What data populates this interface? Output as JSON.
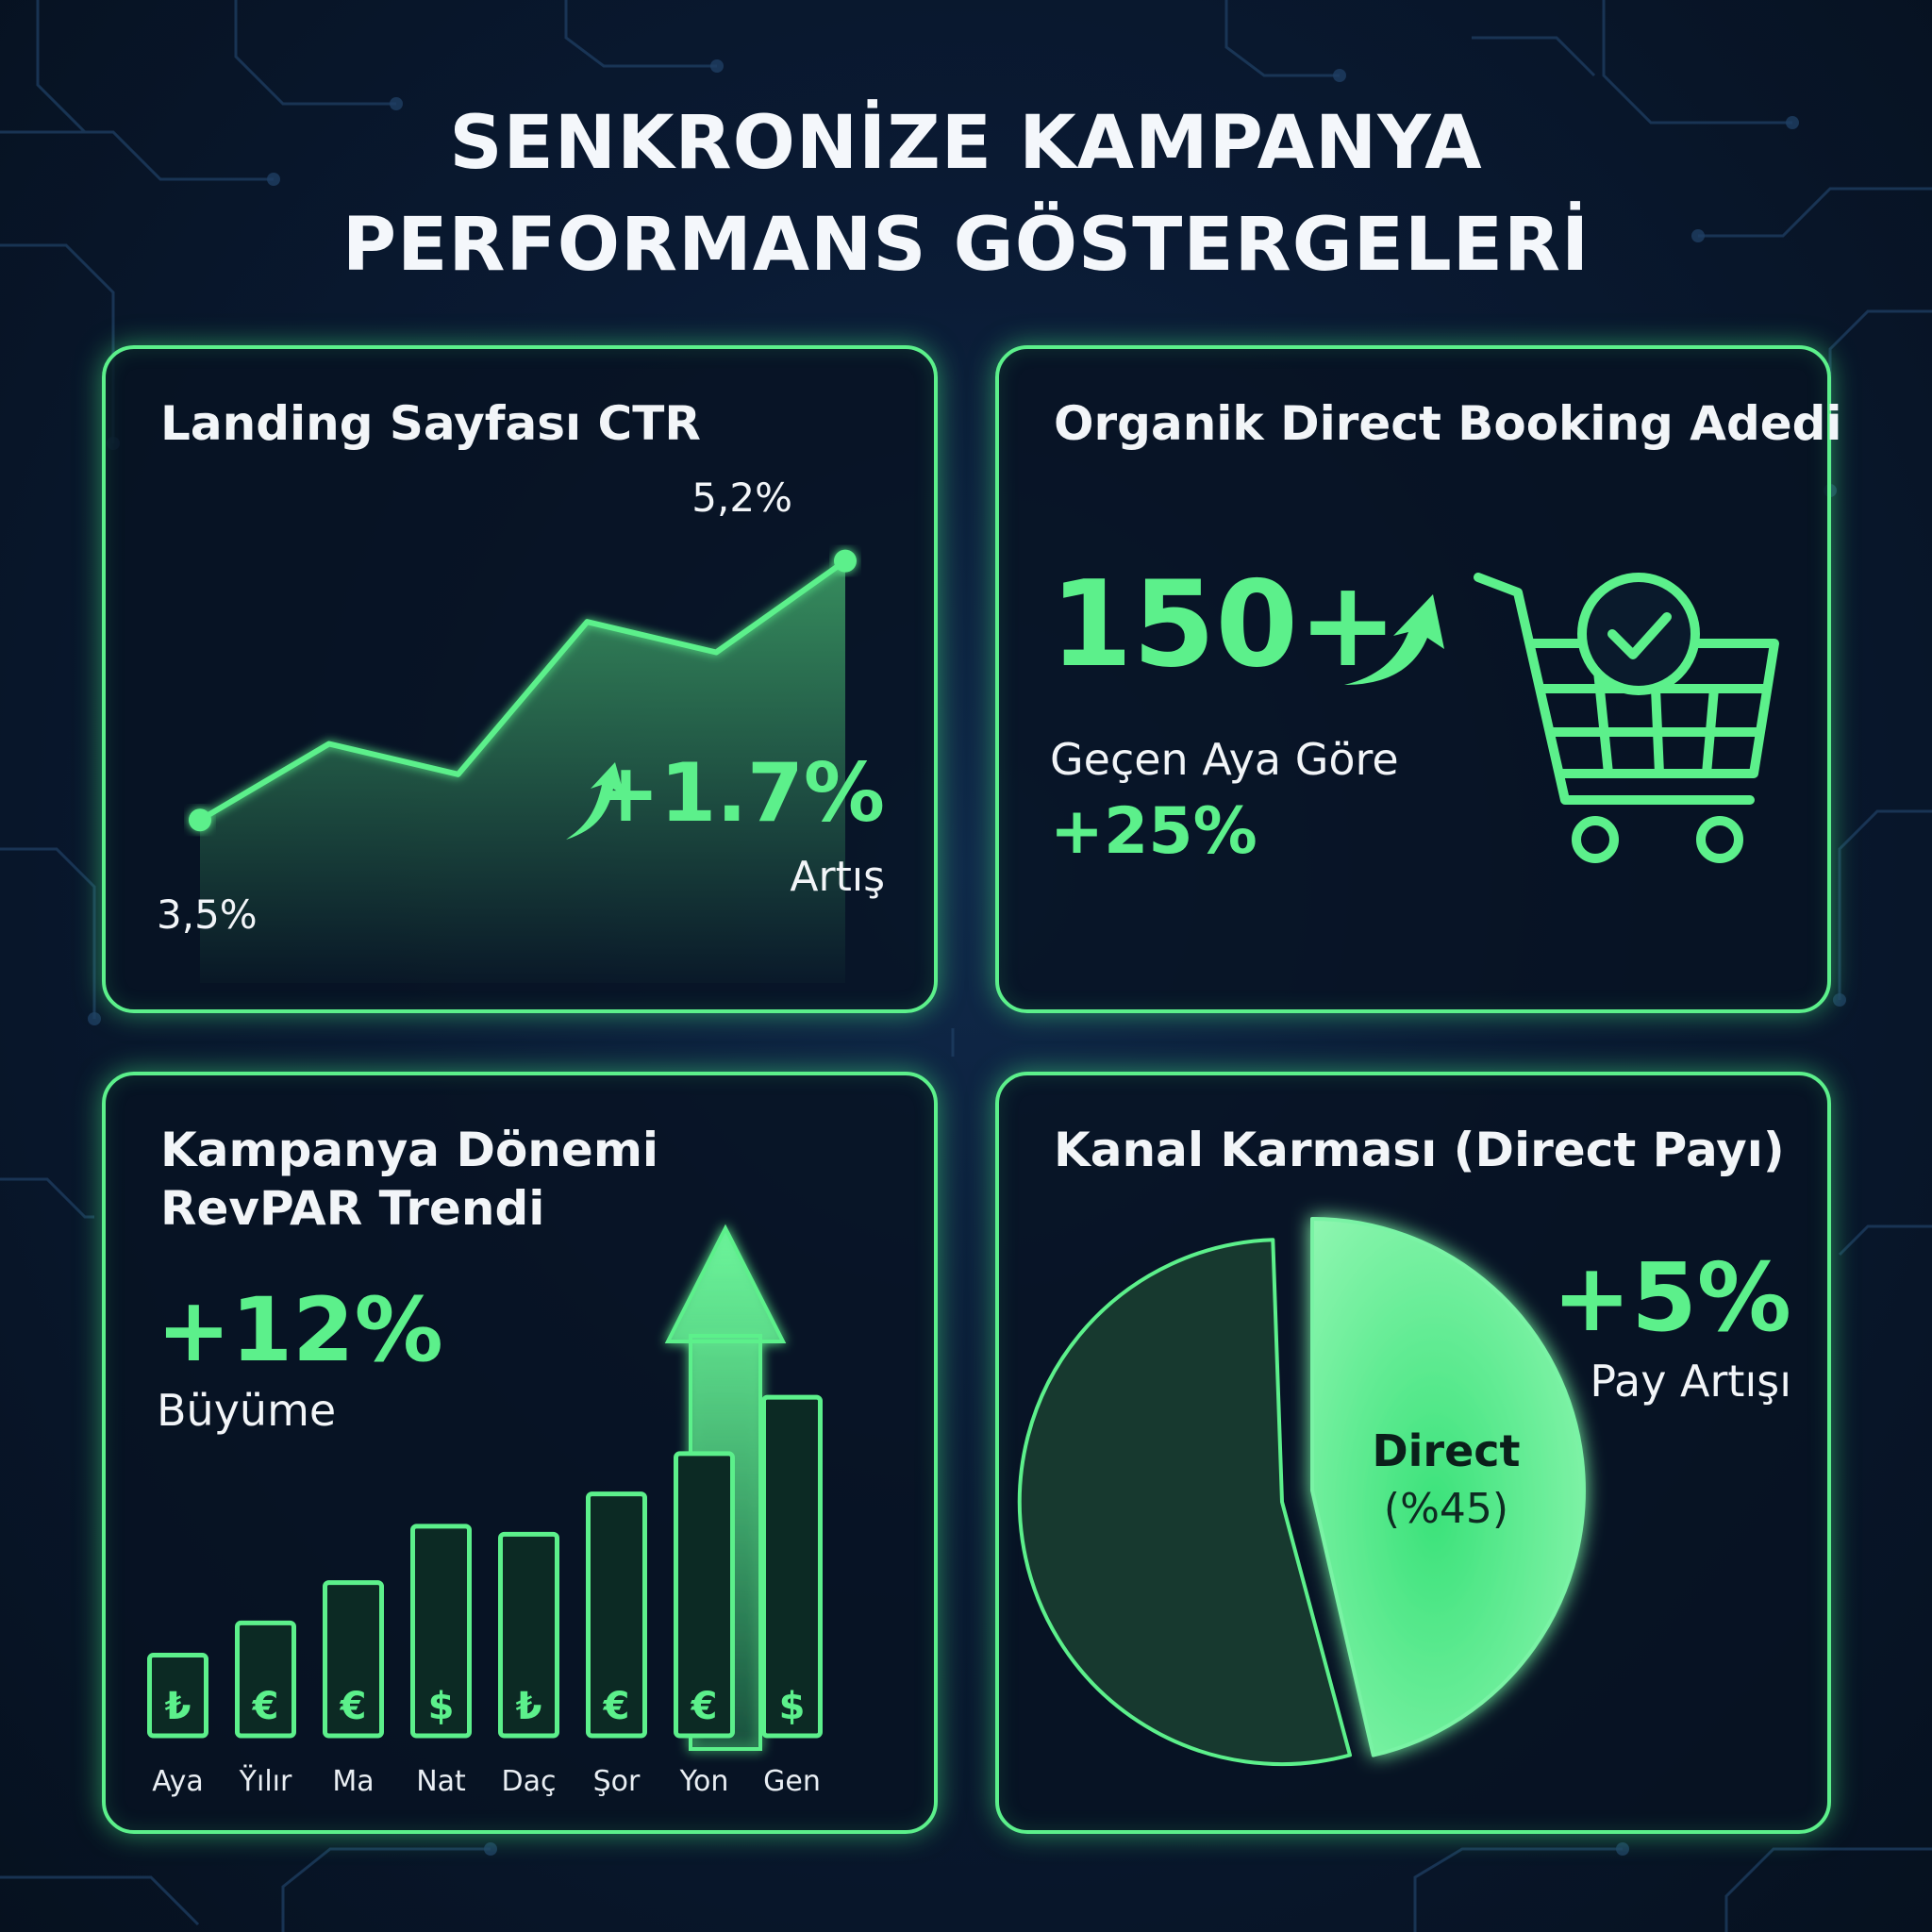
{
  "title": {
    "line1": "SENKRONİZE KAMPANYA",
    "line2": "PERFORMANS GÖSTERGELERİ"
  },
  "colors": {
    "accent": "#5cf08b",
    "accent_dark": "#1d5a3c",
    "background": "#0a1a33",
    "panel": "#071222"
  },
  "ctr": {
    "title": "Landing Sayfası CTR",
    "start_label": "3,5%",
    "end_label": "5,2%",
    "delta": "+1.7%",
    "delta_caption": "Artış",
    "icon": "trend-up-arrow-icon"
  },
  "booking": {
    "title": "Organik Direct Booking Adedi",
    "value": "150+",
    "caption": "Geçen Aya Göre",
    "change": "+25%",
    "icons": [
      "trend-up-arrow-icon",
      "shopping-cart-check-icon"
    ]
  },
  "revpar": {
    "title_line1": "Kampanya Dönemi",
    "title_line2": "RevPAR Trendi",
    "growth": "+12%",
    "growth_caption": "Büyüme",
    "icon": "big-up-arrow-icon"
  },
  "mix": {
    "title": "Kanal Karması (Direct Payı)",
    "slice_label": "Direct",
    "slice_value": "(%45)",
    "change": "+5%",
    "change_caption": "Pay Artışı"
  },
  "chart_data": [
    {
      "type": "line",
      "title": "Landing Sayfası CTR",
      "x": [
        1,
        2,
        3,
        4,
        5,
        6
      ],
      "y": [
        3.5,
        4.0,
        3.8,
        4.8,
        4.6,
        5.2
      ],
      "ylim": [
        3.0,
        5.6
      ],
      "point_labels": {
        "first": "3,5%",
        "last": "5,2%"
      },
      "grid": false
    },
    {
      "type": "bar",
      "title": "Kampanya Dönemi RevPAR Trendi",
      "categories": [
        "Aya",
        "Ÿılır",
        "Ma",
        "Nat",
        "Daç",
        "Şor",
        "Yon",
        "Gen"
      ],
      "values": [
        1.0,
        1.4,
        1.9,
        2.6,
        2.5,
        3.0,
        3.5,
        4.2
      ],
      "currency_symbols": [
        "₺",
        "€",
        "€",
        "$",
        "₺",
        "€",
        "€",
        "$"
      ],
      "ylim": [
        0,
        5.5
      ],
      "grid": false
    },
    {
      "type": "pie",
      "title": "Kanal Karması (Direct Payı)",
      "slices": [
        {
          "label": "Direct (%45)",
          "value": 45
        },
        {
          "label": "",
          "value": 55
        }
      ]
    }
  ]
}
